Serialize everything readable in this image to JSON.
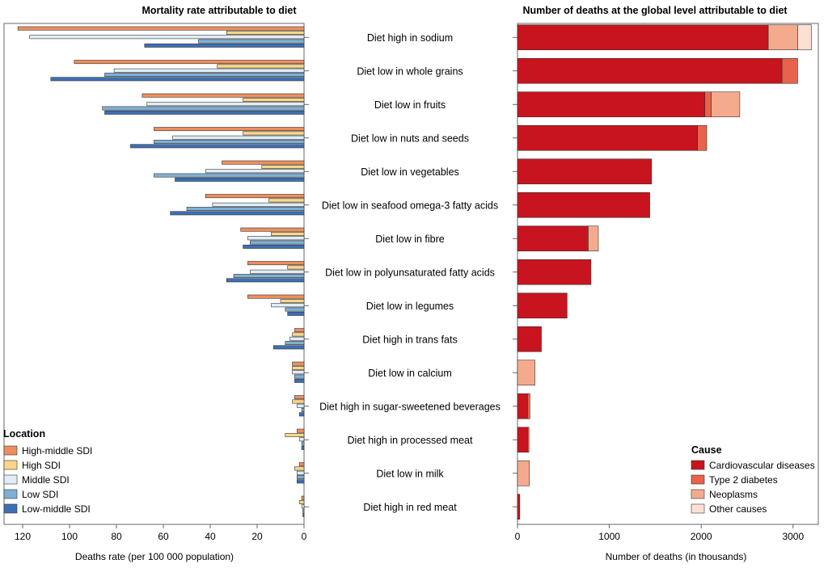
{
  "chart_data": [
    {
      "type": "bar",
      "orientation": "horizontal",
      "title": "Mortality rate attributable to diet",
      "xlabel": "Deaths rate (per 100 000 population)",
      "xlim": [
        0,
        123
      ],
      "x_reversed": true,
      "xticks": [
        "120",
        "100",
        "80",
        "60",
        "40",
        "20",
        "0"
      ],
      "categories": [
        "Diet high in sodium",
        "Diet low in whole grains",
        "Diet low in fruits",
        "Diet low in nuts and seeds",
        "Diet low in vegetables",
        "Diet low in seafood omega-3 fatty acids",
        "Diet low in fibre",
        "Diet low in polyunsaturated fatty acids",
        "Diet low in legumes",
        "Diet high in trans fats",
        "Diet low in calcium",
        "Diet high in sugar-sweetened beverages",
        "Diet high in processed meat",
        "Diet low in milk",
        "Diet high in red meat"
      ],
      "legend_title": "Location",
      "legend_position": "bottom-left",
      "series": [
        {
          "name": "High-middle SDI",
          "color": "#ee8e5e",
          "values": [
            122,
            98,
            69,
            64,
            35,
            42,
            27,
            24,
            24,
            4,
            5,
            4,
            3,
            2,
            1
          ]
        },
        {
          "name": "High SDI",
          "color": "#fbd68a",
          "values": [
            33,
            37,
            26,
            26,
            18,
            15,
            14,
            7,
            10,
            5,
            5,
            5,
            8,
            4,
            2
          ]
        },
        {
          "name": "Middle SDI",
          "color": "#e0edf7",
          "values": [
            117,
            81,
            67,
            56,
            42,
            39,
            24,
            23,
            14,
            6,
            5,
            3,
            2,
            3,
            1
          ]
        },
        {
          "name": "Low SDI",
          "color": "#7fb0d6",
          "values": [
            45,
            85,
            86,
            64,
            64,
            50,
            23,
            30,
            8,
            8,
            4,
            1,
            1,
            3,
            0.5
          ]
        },
        {
          "name": "Low-middle SDI",
          "color": "#3d6fb3",
          "values": [
            68,
            108,
            85,
            74,
            55,
            57,
            26,
            33,
            7,
            13,
            4,
            2,
            1,
            3,
            0.5
          ]
        }
      ]
    },
    {
      "type": "bar",
      "orientation": "horizontal",
      "stacked": true,
      "title": "Number of deaths at the global level attributable to diet",
      "xlabel": "Number of deaths (in thousands)",
      "xlim": [
        0,
        3300
      ],
      "xticks": [
        "0",
        "1000",
        "2000",
        "3000"
      ],
      "legend_title": "Cause",
      "legend_position": "bottom-right",
      "series": [
        {
          "name": "Cardiovascular diseases",
          "color": "#c8141e",
          "values": [
            2730,
            2880,
            2040,
            1960,
            1460,
            1440,
            770,
            800,
            540,
            260,
            0,
            110,
            110,
            0,
            25
          ]
        },
        {
          "name": "Type 2 diabetes",
          "color": "#e8634b",
          "values": [
            0,
            170,
            70,
            100,
            0,
            0,
            0,
            0,
            0,
            0,
            0,
            25,
            15,
            0,
            0
          ]
        },
        {
          "name": "Neoplasms",
          "color": "#f4ab8d",
          "values": [
            320,
            0,
            310,
            0,
            0,
            0,
            110,
            0,
            0,
            0,
            190,
            0,
            0,
            130,
            0
          ]
        },
        {
          "name": "Other causes",
          "color": "#fde0d4",
          "values": [
            150,
            0,
            0,
            0,
            0,
            0,
            0,
            0,
            0,
            0,
            0,
            0,
            0,
            0,
            0
          ]
        }
      ]
    }
  ]
}
